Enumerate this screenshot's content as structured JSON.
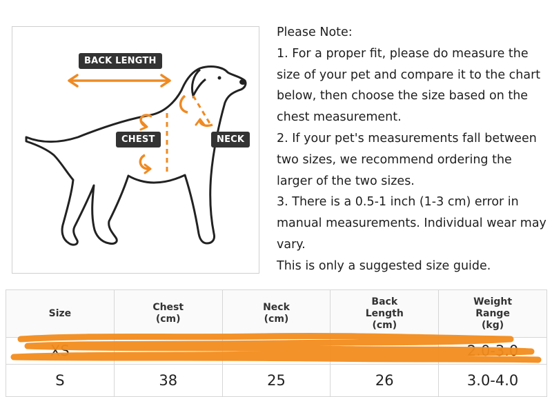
{
  "illustration": {
    "labels": {
      "back_length": "BACK LENGTH",
      "chest": "CHEST",
      "neck": "NECK"
    },
    "accent_color": "#ef8a22"
  },
  "notes": {
    "heading": "Please Note:",
    "items": [
      "1. For a proper fit, please do measure the size of your pet and compare it to the chart below, then choose the size based on the chest measurement.",
      "2. If your pet's measurements fall between two sizes, we recommend ordering the larger of the two sizes.",
      "3. There is a 0.5-1 inch (1-3 cm) error in manual measurements. Individual wear may vary."
    ],
    "footer": "This is only a suggested size guide."
  },
  "size_table": {
    "headers": [
      {
        "line1": "Size",
        "line2": "",
        "line3": ""
      },
      {
        "line1": "Chest",
        "line2": "(cm)",
        "line3": ""
      },
      {
        "line1": "Neck",
        "line2": "(cm)",
        "line3": ""
      },
      {
        "line1": "Back",
        "line2": "Length",
        "line3": "(cm)"
      },
      {
        "line1": "Weight",
        "line2": "Range",
        "line3": "(kg)"
      }
    ],
    "rows": [
      [
        "XS",
        "",
        "",
        "",
        "2.0-3.0"
      ],
      [
        "S",
        "38",
        "25",
        "26",
        "3.0-4.0"
      ]
    ]
  }
}
